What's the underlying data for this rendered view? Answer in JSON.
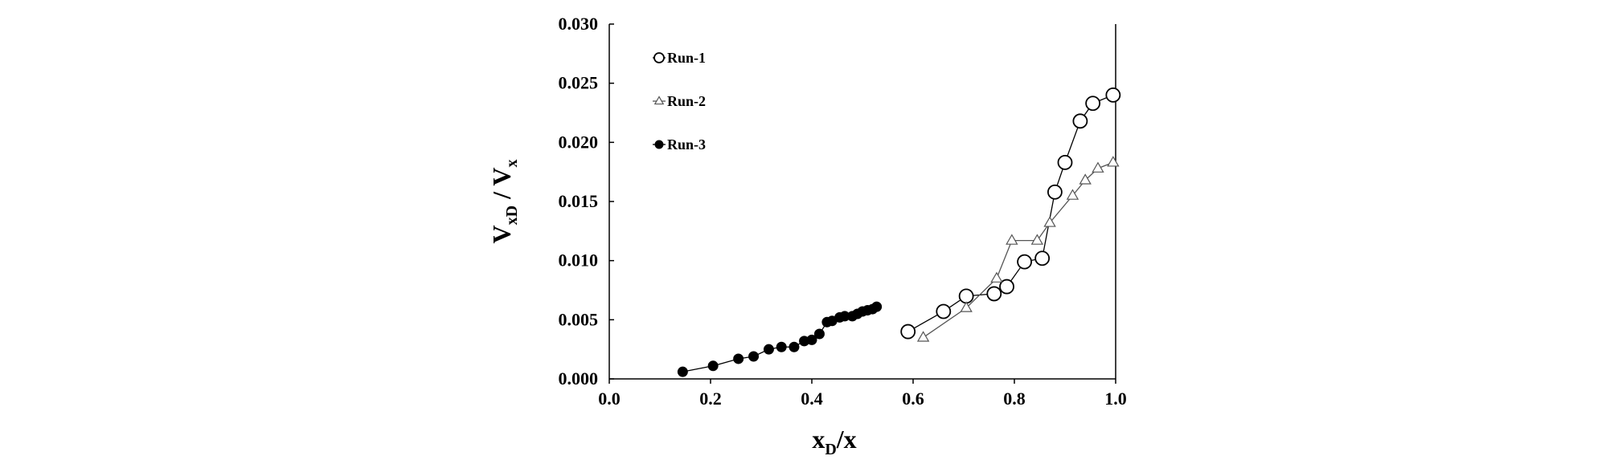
{
  "chart_data": {
    "type": "line",
    "title": "",
    "xlabel": {
      "base": "x",
      "sub": "D",
      "suffix": "/x"
    },
    "ylabel": {
      "base": "V",
      "sub": "xD",
      "sep": " / ",
      "base2": "V",
      "sub2": "x"
    },
    "xlim": [
      0,
      1.0
    ],
    "ylim": [
      0,
      0.03
    ],
    "xticks": [
      "0.0",
      "0.2",
      "0.4",
      "0.6",
      "0.8",
      "1.0"
    ],
    "xtick_values": [
      0,
      0.2,
      0.4,
      0.6,
      0.8,
      1.0
    ],
    "yticks": [
      "0.000",
      "0.005",
      "0.010",
      "0.015",
      "0.020",
      "0.025",
      "0.030"
    ],
    "ytick_values": [
      0,
      0.005,
      0.01,
      0.015,
      0.02,
      0.025,
      0.03
    ],
    "grid": false,
    "legend_position": "top-left",
    "series": [
      {
        "name": "Run-1",
        "marker": "open-circle",
        "color": "#000000",
        "x": [
          0.59,
          0.66,
          0.705,
          0.76,
          0.785,
          0.82,
          0.855,
          0.88,
          0.9,
          0.93,
          0.955,
          0.995
        ],
        "y": [
          0.004,
          0.0057,
          0.007,
          0.0072,
          0.0078,
          0.0099,
          0.0102,
          0.0158,
          0.0183,
          0.0218,
          0.0233,
          0.024
        ]
      },
      {
        "name": "Run-2",
        "marker": "open-triangle",
        "color": "#555555",
        "x": [
          0.62,
          0.705,
          0.765,
          0.795,
          0.845,
          0.87,
          0.915,
          0.94,
          0.965,
          0.995
        ],
        "y": [
          0.0035,
          0.006,
          0.0085,
          0.0117,
          0.0117,
          0.0132,
          0.0155,
          0.0168,
          0.0178,
          0.0183
        ]
      },
      {
        "name": "Run-3",
        "marker": "filled-circle",
        "color": "#000000",
        "x": [
          0.145,
          0.205,
          0.255,
          0.285,
          0.315,
          0.34,
          0.365,
          0.385,
          0.4,
          0.415,
          0.43,
          0.44,
          0.455,
          0.465,
          0.48,
          0.49,
          0.5,
          0.51,
          0.52,
          0.528
        ],
        "y": [
          0.0006,
          0.0011,
          0.0017,
          0.0019,
          0.0025,
          0.0027,
          0.0027,
          0.0032,
          0.0033,
          0.0038,
          0.0048,
          0.0049,
          0.0052,
          0.0053,
          0.0053,
          0.0055,
          0.0057,
          0.0058,
          0.0059,
          0.0061
        ]
      }
    ]
  }
}
